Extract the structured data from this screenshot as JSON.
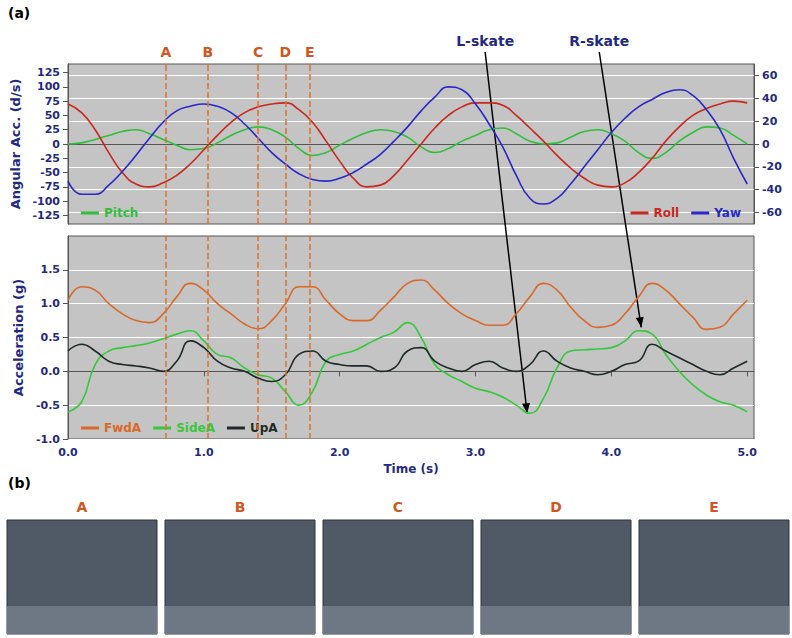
{
  "panel_labels": [
    "(a)",
    "(b)"
  ],
  "markers": [
    {
      "label": "A",
      "x": 0.72
    },
    {
      "label": "B",
      "x": 1.03
    },
    {
      "label": "C",
      "x": 1.4
    },
    {
      "label": "D",
      "x": 1.6
    },
    {
      "label": "E",
      "x": 1.78
    }
  ],
  "photos": {
    "labels": [
      "A",
      "B",
      "C",
      "D",
      "E"
    ]
  },
  "chart_data": [
    {
      "type": "line",
      "ylabel": "Angular Acc. (d/s)",
      "x": [
        0.0,
        0.1,
        0.2,
        0.3,
        0.4,
        0.5,
        0.6,
        0.7,
        0.8,
        0.9,
        1.0,
        1.1,
        1.2,
        1.3,
        1.4,
        1.5,
        1.6,
        1.7,
        1.8,
        1.9,
        2.0,
        2.1,
        2.2,
        2.3,
        2.4,
        2.5,
        2.6,
        2.7,
        2.8,
        2.9,
        3.0,
        3.1,
        3.2,
        3.3,
        3.4,
        3.5,
        3.6,
        3.7,
        3.8,
        3.9,
        4.0,
        4.1,
        4.2,
        4.3,
        4.4,
        4.5,
        4.6,
        4.7,
        4.8,
        4.9,
        5.0
      ],
      "xlim": [
        0,
        5.05
      ],
      "ylim": [
        -140,
        140
      ],
      "yticks": [
        -125,
        -100,
        -75,
        -50,
        -25,
        0,
        25,
        50,
        75,
        100,
        125
      ],
      "y2lim": [
        -70,
        70
      ],
      "y2ticks": [
        -60,
        -40,
        -20,
        0,
        20,
        40,
        60
      ],
      "tick_labels": "y",
      "grid": true,
      "legend": "bottom",
      "series": [
        {
          "name": "Pitch",
          "color": "#2fbf3a",
          "values": [
            0,
            2,
            8,
            15,
            22,
            25,
            18,
            8,
            -2,
            -10,
            -8,
            2,
            15,
            25,
            30,
            25,
            12,
            -8,
            -20,
            -15,
            -2,
            10,
            20,
            25,
            22,
            12,
            -5,
            -15,
            -8,
            5,
            15,
            25,
            28,
            18,
            5,
            0,
            2,
            12,
            22,
            25,
            18,
            5,
            -15,
            -25,
            -15,
            5,
            20,
            30,
            28,
            15,
            0
          ]
        },
        {
          "name": "Roll",
          "color": "#c8281e",
          "axis": "y2",
          "values": [
            35,
            27.5,
            12.5,
            -7.5,
            -25,
            -35,
            -37.5,
            -34,
            -27.5,
            -17.5,
            -5,
            7.5,
            19,
            27.5,
            32.5,
            35,
            36,
            30,
            19,
            2.5,
            -15,
            -30,
            -37.5,
            -36,
            -27.5,
            -14,
            0,
            14,
            25,
            32.5,
            36,
            36,
            34,
            25,
            14,
            2.5,
            -10,
            -21,
            -30,
            -36,
            -37.5,
            -34,
            -25,
            -12.5,
            2.5,
            15,
            25,
            31,
            35,
            37.5,
            36
          ]
        },
        {
          "name": "Yaw",
          "color": "#2828c8",
          "axis": "y2",
          "values": [
            -32.5,
            -44,
            -44,
            -36,
            -24,
            -10,
            5,
            19,
            29,
            33,
            35,
            33,
            27.5,
            17.5,
            5,
            -7.5,
            -17.5,
            -26,
            -31,
            -32.5,
            -30,
            -25,
            -17.5,
            -9,
            2.5,
            15,
            29,
            41,
            50,
            47.5,
            35,
            17.5,
            -2.5,
            -27.5,
            -47.5,
            -52.5,
            -47.5,
            -35,
            -20,
            -5,
            10,
            22.5,
            32.5,
            39,
            45,
            47.5,
            42.5,
            30,
            12.5,
            -12.5,
            -35
          ]
        }
      ]
    },
    {
      "type": "line",
      "xlabel": "Time (s)",
      "ylabel": "Acceleration (g)",
      "x": [
        0.0,
        0.1,
        0.2,
        0.3,
        0.4,
        0.5,
        0.6,
        0.7,
        0.8,
        0.9,
        1.0,
        1.1,
        1.2,
        1.3,
        1.4,
        1.5,
        1.6,
        1.7,
        1.8,
        1.9,
        2.0,
        2.1,
        2.2,
        2.3,
        2.4,
        2.5,
        2.6,
        2.7,
        2.8,
        2.9,
        3.0,
        3.1,
        3.2,
        3.3,
        3.4,
        3.5,
        3.6,
        3.7,
        3.8,
        3.9,
        4.0,
        4.1,
        4.2,
        4.3,
        4.4,
        4.5,
        4.6,
        4.7,
        4.8,
        4.9,
        5.0
      ],
      "xlim": [
        0,
        5.05
      ],
      "xticks": [
        {
          "value": 0,
          "label": "0.0"
        },
        {
          "value": 1,
          "label": "1.0"
        },
        {
          "value": 2,
          "label": "2.0"
        },
        {
          "value": 3,
          "label": "3.0"
        },
        {
          "value": 4,
          "label": "4.0"
        },
        {
          "value": 5,
          "label": "5.0"
        }
      ],
      "ylim": [
        -1.0,
        2.0
      ],
      "yticks": [
        {
          "value": -1,
          "label": "-1.0"
        },
        -0.5,
        {
          "value": 0,
          "label": "0.0"
        },
        0.5,
        {
          "value": 1,
          "label": "1.0"
        },
        1.5
      ],
      "grid": true,
      "legend": "bottom",
      "annotations": [
        {
          "text": "L-skate",
          "x": 3.38,
          "y": -0.62
        },
        {
          "text": "R-skate",
          "x": 4.22,
          "y": 0.65
        }
      ],
      "series": [
        {
          "name": "FwdA",
          "color": "#d8692a",
          "values": [
            1.05,
            1.25,
            1.2,
            1.0,
            0.85,
            0.75,
            0.72,
            0.85,
            1.1,
            1.3,
            1.2,
            1.0,
            0.85,
            0.7,
            0.63,
            0.75,
            1.0,
            1.25,
            1.25,
            1.05,
            0.85,
            0.75,
            0.75,
            0.9,
            1.1,
            1.3,
            1.35,
            1.2,
            1.0,
            0.85,
            0.75,
            0.68,
            0.68,
            0.85,
            1.1,
            1.3,
            1.2,
            0.95,
            0.75,
            0.65,
            0.68,
            0.85,
            1.1,
            1.3,
            1.2,
            1.0,
            0.8,
            0.62,
            0.65,
            0.85,
            1.05
          ]
        },
        {
          "name": "SideA",
          "color": "#35c83a",
          "values": [
            -0.6,
            -0.45,
            0.1,
            0.3,
            0.35,
            0.38,
            0.42,
            0.48,
            0.55,
            0.6,
            0.45,
            0.25,
            0.2,
            0.05,
            -0.05,
            -0.1,
            -0.3,
            -0.5,
            -0.3,
            0.15,
            0.25,
            0.3,
            0.4,
            0.5,
            0.58,
            0.72,
            0.5,
            0.1,
            -0.05,
            -0.15,
            -0.25,
            -0.3,
            -0.38,
            -0.5,
            -0.62,
            -0.4,
            0.05,
            0.3,
            0.32,
            0.33,
            0.35,
            0.45,
            0.6,
            0.55,
            0.25,
            0.0,
            -0.2,
            -0.35,
            -0.45,
            -0.5,
            -0.6
          ]
        },
        {
          "name": "UpA",
          "color": "#1e2a2a",
          "values": [
            0.3,
            0.4,
            0.3,
            0.15,
            0.1,
            0.08,
            0.05,
            0.0,
            0.15,
            0.45,
            0.35,
            0.15,
            0.05,
            0.0,
            -0.1,
            -0.15,
            -0.05,
            0.25,
            0.3,
            0.15,
            0.1,
            0.08,
            0.08,
            0.0,
            0.05,
            0.3,
            0.35,
            0.15,
            0.05,
            0.0,
            0.1,
            0.15,
            0.05,
            0.0,
            0.1,
            0.3,
            0.15,
            0.05,
            0.0,
            -0.05,
            0.0,
            0.1,
            0.15,
            0.4,
            0.3,
            0.2,
            0.1,
            0.0,
            -0.05,
            0.05,
            0.15
          ]
        }
      ]
    }
  ]
}
